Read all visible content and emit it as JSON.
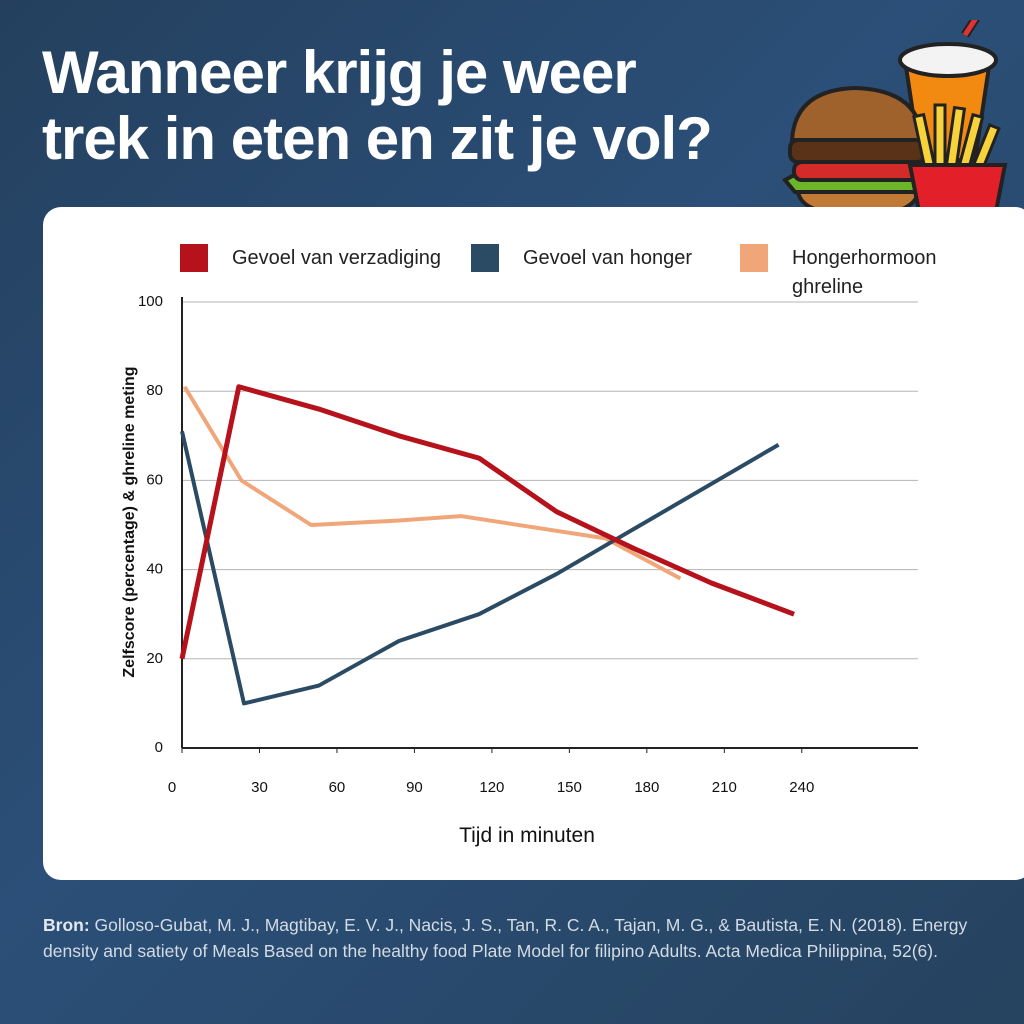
{
  "chart_data": {
    "type": "line",
    "title": [
      "Wanneer krijg je weer",
      "trek in eten en zit je vol?"
    ],
    "x_label": "Tijd in minuten",
    "y_label": "Zelfscore (percentage) & ghreline meting",
    "xlim": [
      0,
      285
    ],
    "xticks": [
      0,
      30,
      60,
      90,
      120,
      150,
      180,
      210,
      240
    ],
    "ylim": [
      0,
      100
    ],
    "yticks": [
      0,
      20,
      40,
      60,
      80,
      100
    ],
    "grid": true,
    "series": [
      {
        "name": "Gevoel van verzadiging",
        "color": "#b5121b",
        "x": [
          0,
          22,
          53,
          84,
          115,
          145,
          174,
          205,
          237
        ],
        "values": [
          20,
          81,
          76,
          70,
          65,
          53,
          45,
          37,
          30
        ]
      },
      {
        "name": "Gevoel van honger",
        "color": "#2b4a63",
        "x": [
          0,
          24,
          53,
          84,
          115,
          145,
          231
        ],
        "values": [
          71,
          10,
          14,
          24,
          30,
          39,
          68
        ]
      },
      {
        "name": "Hongerhormoon ghreline",
        "color": "#f0a679",
        "x": [
          1,
          23,
          50,
          84,
          108,
          164,
          193
        ],
        "values": [
          81,
          60,
          50,
          51,
          52,
          47,
          38
        ]
      }
    ]
  },
  "source": {
    "label": "Bron:",
    "text": "Golloso-Gubat, M. J., Magtibay, E. V. J., Nacis, J. S., Tan, R. C. A., Tajan, M. G., & Bautista, E. N. (2018). Energy density and satiety of Meals Based on the healthy food Plate Model for filipino Adults. Acta Medica Philippina, 52(6)."
  }
}
